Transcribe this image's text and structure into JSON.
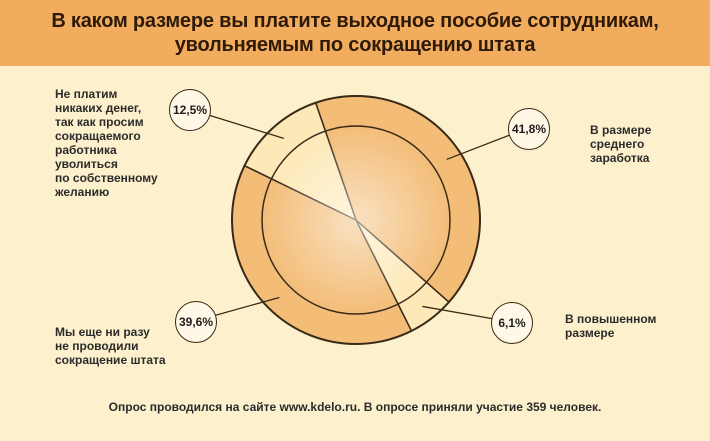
{
  "title_line1": "В каком размере вы платите выходное пособие сотрудникам,",
  "title_line2": "увольняемым по сокращению штата",
  "footer": "Опрос проводился на сайте www.kdelo.ru. В опросе приняли участие 359 человек.",
  "chart_data": {
    "type": "pie",
    "slices": [
      {
        "label": "В размере\nсреднего\nзаработка",
        "value": 41.8,
        "value_label": "41,8%",
        "color": "#f3bd78"
      },
      {
        "label": "В повышенном\nразмере",
        "value": 6.1,
        "value_label": "6,1%",
        "color": "#fde9b8"
      },
      {
        "label": "Мы еще ни разу\nне проводили\nсокращение штата",
        "value": 39.6,
        "value_label": "39,6%",
        "color": "#f3bd78"
      },
      {
        "label": "Не платим\nникаких денег,\nтак как просим\nсокращаемого\nработника\nуволиться\nпо собственному\nжеланию",
        "value": 12.5,
        "value_label": "12,5%",
        "color": "#fde9b8"
      }
    ]
  }
}
